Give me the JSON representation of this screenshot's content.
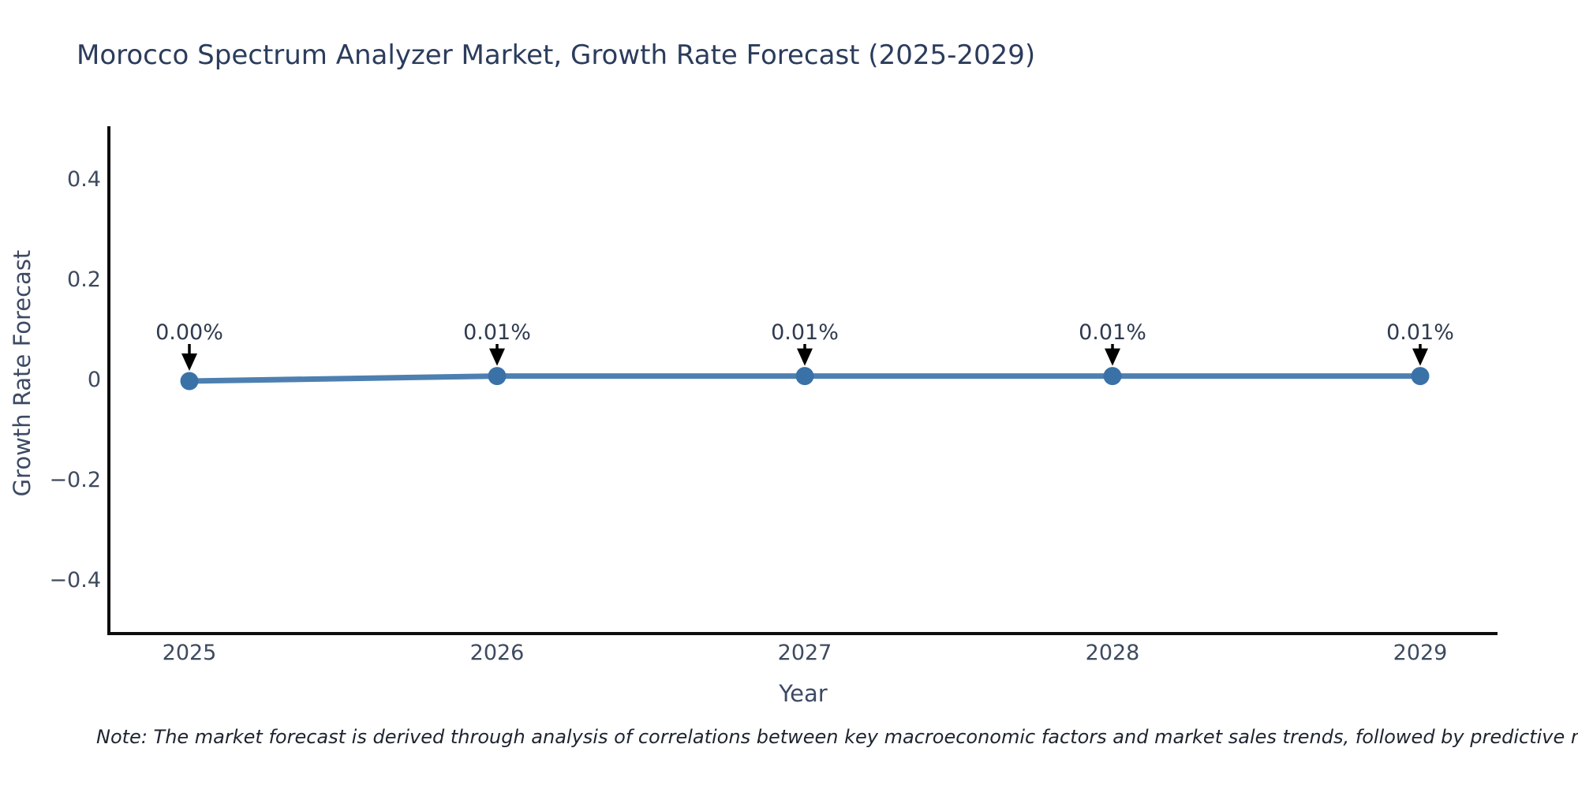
{
  "title": "Morocco Spectrum Analyzer Market, Growth Rate Forecast (2025-2029)",
  "note": "Note: The market forecast is derived through analysis of correlations between key macroeconomic factors and market sales trends, followed by predictive modeling to project future sales",
  "chart_data": {
    "type": "line",
    "title": "Morocco Spectrum Analyzer Market, Growth Rate Forecast (2025-2029)",
    "xlabel": "Year",
    "ylabel": "Growth Rate Forecast",
    "categories": [
      "2025",
      "2026",
      "2027",
      "2028",
      "2029"
    ],
    "values": [
      0.0,
      0.01,
      0.01,
      0.01,
      0.01
    ],
    "point_labels": [
      "0.00%",
      "0.01%",
      "0.01%",
      "0.01%",
      "0.01%"
    ],
    "ylim": [
      -0.5,
      0.5
    ],
    "yticks": [
      0.4,
      0.2,
      0,
      -0.2,
      -0.4
    ],
    "ytick_labels": [
      "0.4",
      "0.2",
      "0",
      "−0.2",
      "−0.4"
    ],
    "grid": false,
    "legend": false,
    "line_color": "#4d80b0",
    "marker_color": "#3a72a8",
    "annotation_arrow_color": "#000000",
    "axis_color": "#0d0d0d"
  }
}
